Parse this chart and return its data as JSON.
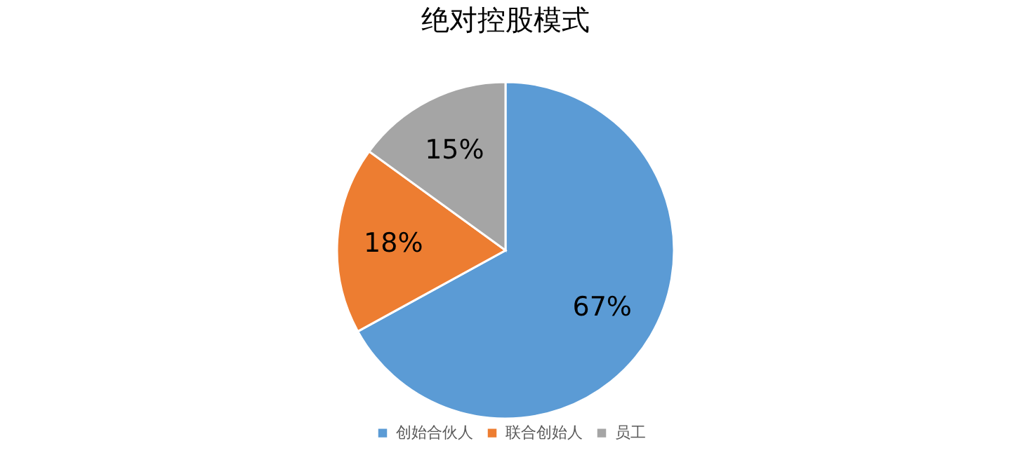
{
  "chart_data": {
    "type": "pie",
    "title": "绝对控股模式",
    "categories": [
      "创始合伙人",
      "联合创始人",
      "员工"
    ],
    "values": [
      67,
      18,
      15
    ],
    "colors": [
      "#5b9bd5",
      "#ed7d31",
      "#a5a5a5"
    ],
    "value_labels": [
      "67%",
      "18%",
      "15%"
    ],
    "legend": "bottom"
  }
}
